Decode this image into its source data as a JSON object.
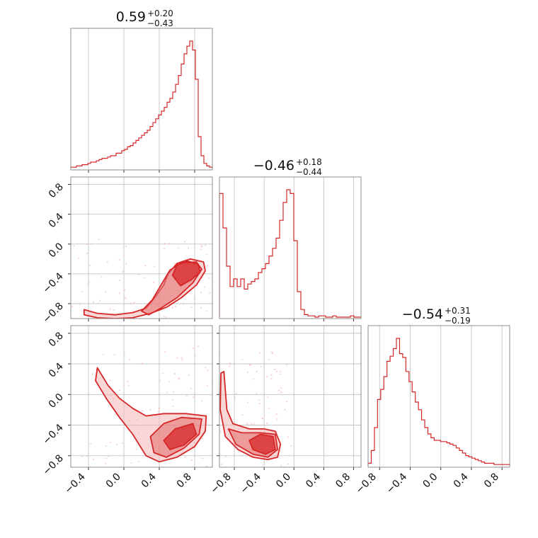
{
  "chart_data": {
    "type": "corner",
    "color": "#d62728",
    "fill_light": "#f4b6b7",
    "fill_dark": "#e57373",
    "grid": true,
    "parameters": [
      {
        "title": {
          "median": "0.59",
          "plus": "+0.20",
          "minus": "−0.43"
        },
        "range": [
          -0.6,
          1.0
        ],
        "ticks": [
          -0.4,
          0.0,
          0.4,
          0.8
        ],
        "tick_labels": [
          "−0.4",
          "0.0",
          "0.4",
          "0.8"
        ],
        "hist": [
          0.01,
          0.01,
          0.02,
          0.02,
          0.03,
          0.03,
          0.04,
          0.05,
          0.05,
          0.06,
          0.07,
          0.08,
          0.08,
          0.09,
          0.1,
          0.1,
          0.12,
          0.12,
          0.14,
          0.15,
          0.17,
          0.18,
          0.2,
          0.22,
          0.24,
          0.26,
          0.28,
          0.3,
          0.33,
          0.36,
          0.39,
          0.42,
          0.45,
          0.48,
          0.52,
          0.55,
          0.6,
          0.66,
          0.73,
          0.82,
          0.9,
          0.96,
          1.0,
          0.93,
          0.7,
          0.25,
          0.1,
          0.04,
          0.02,
          0.01
        ]
      },
      {
        "title": {
          "median": "−0.46",
          "plus": "+0.18",
          "minus": "−0.44"
        },
        "range": [
          -1.0,
          0.9
        ],
        "ticks": [
          -0.8,
          -0.4,
          0.0,
          0.4,
          0.8
        ],
        "tick_labels": [
          "−0.8",
          "−0.4",
          "0.0",
          "0.4",
          "0.8"
        ],
        "hist": [
          0.97,
          0.7,
          0.4,
          0.24,
          0.3,
          0.24,
          0.3,
          0.22,
          0.26,
          0.28,
          0.3,
          0.35,
          0.38,
          0.42,
          0.48,
          0.54,
          0.62,
          0.76,
          0.9,
          1.0,
          0.97,
          0.6,
          0.2,
          0.06,
          0.02,
          0.01,
          0.01,
          0.0,
          0.01,
          0.01,
          0.0,
          0.0,
          0.01,
          0.0,
          0.0,
          0.0,
          0.0,
          0.01,
          0.0,
          0.0
        ]
      },
      {
        "title": {
          "median": "−0.54",
          "plus": "+0.31",
          "minus": "−0.19"
        },
        "range": [
          -0.95,
          0.9
        ],
        "ticks": [
          -0.8,
          -0.4,
          0.0,
          0.4,
          0.8
        ],
        "tick_labels": [
          "−0.8",
          "−0.4",
          "0.0",
          "0.4",
          "0.8"
        ],
        "hist": [
          0.02,
          0.12,
          0.3,
          0.52,
          0.6,
          0.7,
          0.82,
          0.86,
          0.92,
          1.0,
          0.88,
          0.85,
          0.74,
          0.66,
          0.58,
          0.5,
          0.44,
          0.36,
          0.3,
          0.25,
          0.22,
          0.2,
          0.2,
          0.19,
          0.19,
          0.18,
          0.17,
          0.16,
          0.14,
          0.12,
          0.1,
          0.08,
          0.07,
          0.06,
          0.05,
          0.04,
          0.03,
          0.02,
          0.02,
          0.02,
          0.01,
          0.01,
          0.01,
          0.01,
          0.01
        ]
      }
    ],
    "pairs": [
      {
        "x_param": 0,
        "y_param": 1,
        "levels": [
          [
            [
              -0.45,
              -0.88
            ],
            [
              -0.3,
              -0.93
            ],
            [
              -0.1,
              -0.95
            ],
            [
              0.1,
              -0.92
            ],
            [
              0.25,
              -0.86
            ],
            [
              0.35,
              -0.72
            ],
            [
              0.45,
              -0.55
            ],
            [
              0.5,
              -0.4
            ],
            [
              0.6,
              -0.26
            ],
            [
              0.75,
              -0.2
            ],
            [
              0.9,
              -0.24
            ],
            [
              0.92,
              -0.36
            ],
            [
              0.82,
              -0.55
            ],
            [
              0.65,
              -0.72
            ],
            [
              0.48,
              -0.85
            ],
            [
              0.3,
              -0.93
            ],
            [
              0.1,
              -0.99
            ],
            [
              -0.1,
              -1.0
            ],
            [
              -0.3,
              -0.99
            ],
            [
              -0.45,
              -0.95
            ]
          ],
          [
            [
              0.2,
              -0.9
            ],
            [
              0.32,
              -0.75
            ],
            [
              0.42,
              -0.55
            ],
            [
              0.52,
              -0.35
            ],
            [
              0.65,
              -0.25
            ],
            [
              0.82,
              -0.24
            ],
            [
              0.88,
              -0.34
            ],
            [
              0.78,
              -0.52
            ],
            [
              0.6,
              -0.72
            ],
            [
              0.42,
              -0.86
            ],
            [
              0.28,
              -0.95
            ]
          ],
          [
            [
              0.55,
              -0.42
            ],
            [
              0.6,
              -0.28
            ],
            [
              0.72,
              -0.23
            ],
            [
              0.84,
              -0.27
            ],
            [
              0.86,
              -0.38
            ],
            [
              0.76,
              -0.48
            ],
            [
              0.64,
              -0.56
            ]
          ]
        ]
      },
      {
        "x_param": 0,
        "y_param": 2,
        "levels": [
          [
            [
              -0.3,
              0.35
            ],
            [
              -0.18,
              0.12
            ],
            [
              -0.05,
              -0.05
            ],
            [
              0.1,
              -0.18
            ],
            [
              0.25,
              -0.28
            ],
            [
              0.45,
              -0.25
            ],
            [
              0.7,
              -0.25
            ],
            [
              0.93,
              -0.28
            ],
            [
              0.92,
              -0.48
            ],
            [
              0.8,
              -0.68
            ],
            [
              0.6,
              -0.82
            ],
            [
              0.4,
              -0.88
            ],
            [
              0.25,
              -0.8
            ],
            [
              0.1,
              -0.52
            ],
            [
              -0.05,
              -0.3
            ],
            [
              -0.2,
              -0.05
            ],
            [
              -0.32,
              0.18
            ]
          ],
          [
            [
              0.3,
              -0.55
            ],
            [
              0.45,
              -0.38
            ],
            [
              0.65,
              -0.3
            ],
            [
              0.88,
              -0.32
            ],
            [
              0.85,
              -0.52
            ],
            [
              0.68,
              -0.7
            ],
            [
              0.48,
              -0.82
            ],
            [
              0.34,
              -0.76
            ]
          ],
          [
            [
              0.45,
              -0.6
            ],
            [
              0.58,
              -0.45
            ],
            [
              0.78,
              -0.38
            ],
            [
              0.82,
              -0.52
            ],
            [
              0.68,
              -0.66
            ],
            [
              0.52,
              -0.72
            ]
          ]
        ]
      },
      {
        "x_param": 1,
        "y_param": 2,
        "levels": [
          [
            [
              -0.98,
              0.28
            ],
            [
              -0.94,
              0.3
            ],
            [
              -0.92,
              0.05
            ],
            [
              -0.9,
              -0.2
            ],
            [
              -0.82,
              -0.38
            ],
            [
              -0.6,
              -0.45
            ],
            [
              -0.4,
              -0.45
            ],
            [
              -0.25,
              -0.48
            ],
            [
              -0.18,
              -0.65
            ],
            [
              -0.22,
              -0.82
            ],
            [
              -0.35,
              -0.85
            ],
            [
              -0.55,
              -0.82
            ],
            [
              -0.75,
              -0.72
            ],
            [
              -0.92,
              -0.55
            ],
            [
              -0.99,
              -0.2
            ]
          ],
          [
            [
              -0.88,
              -0.45
            ],
            [
              -0.7,
              -0.5
            ],
            [
              -0.45,
              -0.5
            ],
            [
              -0.25,
              -0.52
            ],
            [
              -0.22,
              -0.72
            ],
            [
              -0.35,
              -0.82
            ],
            [
              -0.55,
              -0.78
            ],
            [
              -0.78,
              -0.65
            ]
          ],
          [
            [
              -0.6,
              -0.6
            ],
            [
              -0.45,
              -0.52
            ],
            [
              -0.28,
              -0.55
            ],
            [
              -0.25,
              -0.72
            ],
            [
              -0.38,
              -0.78
            ],
            [
              -0.55,
              -0.72
            ]
          ]
        ]
      }
    ]
  }
}
